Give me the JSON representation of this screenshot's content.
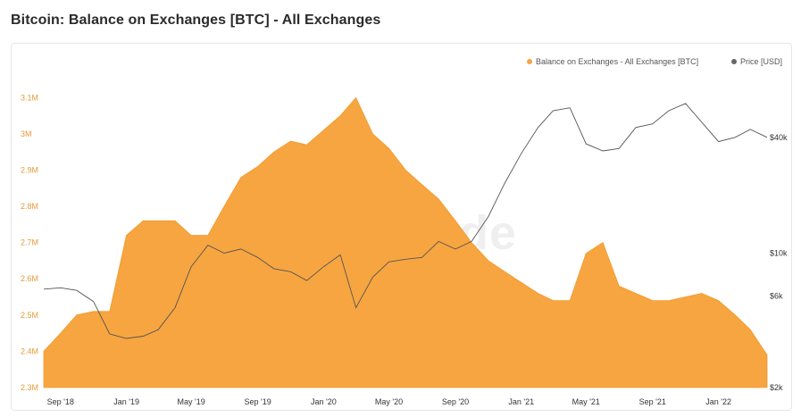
{
  "title": "Bitcoin: Balance on Exchanges [BTC] - All Exchanges",
  "watermark": "glassnode",
  "colors": {
    "balance": "#f7a540",
    "price": "#555555",
    "left_ticks": "#e69b3a"
  },
  "chart_data": {
    "type": "area",
    "title": "Bitcoin: Balance on Exchanges [BTC] - All Exchanges",
    "legend": {
      "placement": "top-right",
      "entries": [
        "Balance on Exchanges - All Exchanges [BTC]",
        "Price [USD]"
      ]
    },
    "x_ticks": [
      "Sep '18",
      "Jan '19",
      "May '19",
      "Sep '19",
      "Jan '20",
      "May '20",
      "Sep '20",
      "Jan '21",
      "May '21",
      "Sep '21",
      "Jan '22"
    ],
    "y_left": {
      "ticks": [
        "2.3M",
        "2.4M",
        "2.5M",
        "2.6M",
        "2.7M",
        "2.8M",
        "2.9M",
        "3M",
        "3.1M"
      ],
      "ylim": [
        2300000,
        3150000
      ]
    },
    "y_right": {
      "scale": "log",
      "ticks": [
        "$2k",
        "$6k",
        "$10k",
        "$40k"
      ],
      "values": [
        2000,
        6000,
        10000,
        40000
      ],
      "ylim": [
        2000,
        80000
      ]
    },
    "x": [
      "2018-08-01",
      "2018-09-01",
      "2018-10-01",
      "2018-11-01",
      "2018-12-01",
      "2019-01-01",
      "2019-02-01",
      "2019-03-01",
      "2019-04-01",
      "2019-05-01",
      "2019-06-01",
      "2019-07-01",
      "2019-08-01",
      "2019-09-01",
      "2019-10-01",
      "2019-11-01",
      "2019-12-01",
      "2020-01-01",
      "2020-02-01",
      "2020-03-01",
      "2020-04-01",
      "2020-05-01",
      "2020-06-01",
      "2020-07-01",
      "2020-08-01",
      "2020-09-01",
      "2020-10-01",
      "2020-11-01",
      "2020-12-01",
      "2021-01-01",
      "2021-02-01",
      "2021-03-01",
      "2021-04-01",
      "2021-05-01",
      "2021-06-01",
      "2021-07-01",
      "2021-08-01",
      "2021-09-01",
      "2021-10-01",
      "2021-11-01",
      "2021-12-01",
      "2022-01-01",
      "2022-02-01",
      "2022-03-01",
      "2022-04-01"
    ],
    "series": [
      {
        "name": "Balance on Exchanges - All Exchanges [BTC]",
        "axis": "left",
        "values": [
          2400000,
          2450000,
          2500000,
          2510000,
          2510000,
          2720000,
          2760000,
          2760000,
          2760000,
          2720000,
          2720000,
          2800000,
          2880000,
          2910000,
          2950000,
          2980000,
          2970000,
          3010000,
          3050000,
          3100000,
          3000000,
          2960000,
          2900000,
          2860000,
          2820000,
          2760000,
          2700000,
          2650000,
          2620000,
          2590000,
          2560000,
          2540000,
          2540000,
          2670000,
          2700000,
          2580000,
          2560000,
          2540000,
          2540000,
          2550000,
          2560000,
          2540000,
          2500000,
          2460000,
          2390000
        ]
      },
      {
        "name": "Price [USD]",
        "axis": "right",
        "values": [
          6500,
          6600,
          6400,
          5600,
          3800,
          3600,
          3700,
          4000,
          5200,
          8500,
          11000,
          10000,
          10500,
          9500,
          8300,
          8000,
          7200,
          8500,
          9800,
          5200,
          7500,
          9000,
          9300,
          9500,
          11500,
          10500,
          11500,
          15500,
          23000,
          33000,
          45000,
          55000,
          57000,
          37000,
          34000,
          35000,
          45000,
          47000,
          55000,
          60000,
          48000,
          38000,
          40000,
          44000,
          40000
        ]
      }
    ]
  }
}
